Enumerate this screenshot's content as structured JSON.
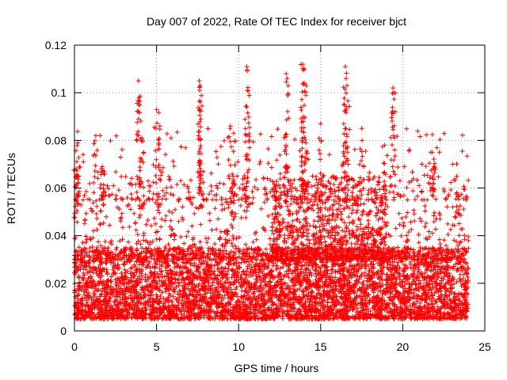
{
  "chart_data": {
    "type": "scatter",
    "title": "Day 007 of 2022, Rate Of TEC Index for receiver bjct",
    "xlabel": "GPS time / hours",
    "ylabel": "ROTI / TECUs",
    "xlim": [
      0,
      25
    ],
    "ylim": [
      0,
      0.12
    ],
    "x_ticks": [
      0,
      5,
      10,
      15,
      20,
      25
    ],
    "x_tick_labels": [
      "0",
      "5",
      "10",
      "15",
      "20",
      "25"
    ],
    "y_ticks": [
      0,
      0.02,
      0.04,
      0.06,
      0.08,
      0.1,
      0.12
    ],
    "y_tick_labels": [
      "0",
      "0.02",
      "0.04",
      "0.06",
      "0.08",
      "0.1",
      "0.12"
    ],
    "grid": true,
    "marker": "+",
    "series": [
      {
        "name": "ROTI",
        "color": "#ff0000",
        "x_range": [
          0,
          24
        ],
        "bulk_range": [
          0.005,
          0.035
        ],
        "peaks": [
          {
            "x": 0.2,
            "y": 0.079
          },
          {
            "x": 0.1,
            "y": 0.068
          },
          {
            "x": 1.3,
            "y": 0.082
          },
          {
            "x": 1.7,
            "y": 0.069
          },
          {
            "x": 3.9,
            "y": 0.105
          },
          {
            "x": 3.95,
            "y": 0.095
          },
          {
            "x": 4.1,
            "y": 0.081
          },
          {
            "x": 5.0,
            "y": 0.093
          },
          {
            "x": 5.2,
            "y": 0.086
          },
          {
            "x": 7.6,
            "y": 0.105
          },
          {
            "x": 7.65,
            "y": 0.103
          },
          {
            "x": 7.7,
            "y": 0.089
          },
          {
            "x": 9.5,
            "y": 0.086
          },
          {
            "x": 9.7,
            "y": 0.083
          },
          {
            "x": 10.5,
            "y": 0.111
          },
          {
            "x": 10.55,
            "y": 0.101
          },
          {
            "x": 10.5,
            "y": 0.094
          },
          {
            "x": 12.9,
            "y": 0.108
          },
          {
            "x": 12.95,
            "y": 0.106
          },
          {
            "x": 13.9,
            "y": 0.112
          },
          {
            "x": 14.0,
            "y": 0.11
          },
          {
            "x": 13.95,
            "y": 0.09
          },
          {
            "x": 14.0,
            "y": 0.104
          },
          {
            "x": 15.0,
            "y": 0.087
          },
          {
            "x": 16.5,
            "y": 0.111
          },
          {
            "x": 16.55,
            "y": 0.106
          },
          {
            "x": 16.6,
            "y": 0.103
          },
          {
            "x": 16.4,
            "y": 0.087
          },
          {
            "x": 17.5,
            "y": 0.085
          },
          {
            "x": 18.9,
            "y": 0.078
          },
          {
            "x": 19.4,
            "y": 0.102
          },
          {
            "x": 19.45,
            "y": 0.1
          },
          {
            "x": 21.8,
            "y": 0.075
          },
          {
            "x": 21.9,
            "y": 0.069
          },
          {
            "x": 23.3,
            "y": 0.058
          }
        ]
      }
    ]
  }
}
